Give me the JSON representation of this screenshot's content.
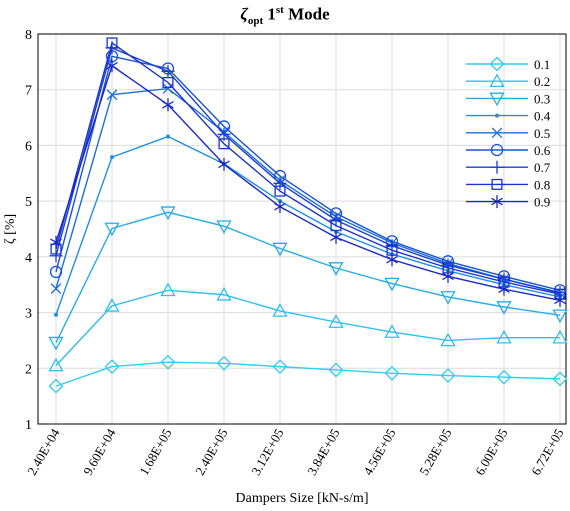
{
  "chart_data": {
    "type": "line",
    "title": {
      "symbol": "ζ",
      "subscript": "opt",
      "number": "1",
      "superscript": "st",
      "rest": "Mode"
    },
    "xlabel": "Dampers Size [kN-s/m]",
    "ylabel": "ζ [%]",
    "categories": [
      "2.40E+04",
      "9.60E+04",
      "1.68E+05",
      "2.40E+05",
      "3.12E+05",
      "3.84E+05",
      "4.56E+05",
      "5.28E+05",
      "6.00E+05",
      "6.72E+05"
    ],
    "ylim": [
      1,
      8
    ],
    "yticks": [
      "1",
      "2",
      "3",
      "4",
      "5",
      "6",
      "7",
      "8"
    ],
    "grid": true,
    "legend_position": "top-right",
    "series": [
      {
        "name": "0.1",
        "marker": "diamond",
        "color": "#33ccee",
        "values": [
          1.68,
          2.03,
          2.11,
          2.09,
          2.03,
          1.97,
          1.91,
          1.87,
          1.84,
          1.81
        ]
      },
      {
        "name": "0.2",
        "marker": "triangle-up",
        "color": "#2ec0ea",
        "values": [
          2.05,
          3.12,
          3.4,
          3.32,
          3.03,
          2.83,
          2.65,
          2.5,
          2.55,
          2.55
        ]
      },
      {
        "name": "0.3",
        "marker": "triangle-down",
        "color": "#26ace6",
        "values": [
          2.46,
          4.51,
          4.8,
          4.55,
          4.15,
          3.8,
          3.52,
          3.28,
          3.1,
          2.95
        ]
      },
      {
        "name": "0.4",
        "marker": "dot",
        "color": "#1f8fe0",
        "values": [
          2.96,
          5.79,
          6.16,
          5.67,
          5.0,
          4.45,
          4.05,
          3.75,
          3.5,
          3.28
        ]
      },
      {
        "name": "0.5",
        "marker": "x",
        "color": "#1a6fda",
        "values": [
          3.43,
          6.91,
          7.02,
          6.24,
          5.37,
          4.72,
          4.25,
          3.88,
          3.6,
          3.35
        ]
      },
      {
        "name": "0.6",
        "marker": "circle",
        "color": "#1a52d4",
        "values": [
          3.73,
          7.6,
          7.38,
          6.34,
          5.45,
          4.78,
          4.28,
          3.92,
          3.65,
          3.4
        ]
      },
      {
        "name": "0.7",
        "marker": "plus",
        "color": "#1a40d0",
        "values": [
          4.02,
          7.75,
          7.33,
          6.2,
          5.32,
          4.66,
          4.2,
          3.85,
          3.6,
          3.36
        ]
      },
      {
        "name": "0.8",
        "marker": "square",
        "color": "#1a34cc",
        "values": [
          4.14,
          7.84,
          7.13,
          6.03,
          5.18,
          4.56,
          4.12,
          3.8,
          3.55,
          3.33
        ]
      },
      {
        "name": "0.9",
        "marker": "asterisk",
        "color": "#1a28c8",
        "values": [
          4.26,
          7.43,
          6.73,
          5.66,
          4.9,
          4.35,
          3.95,
          3.65,
          3.42,
          3.22
        ]
      }
    ]
  }
}
